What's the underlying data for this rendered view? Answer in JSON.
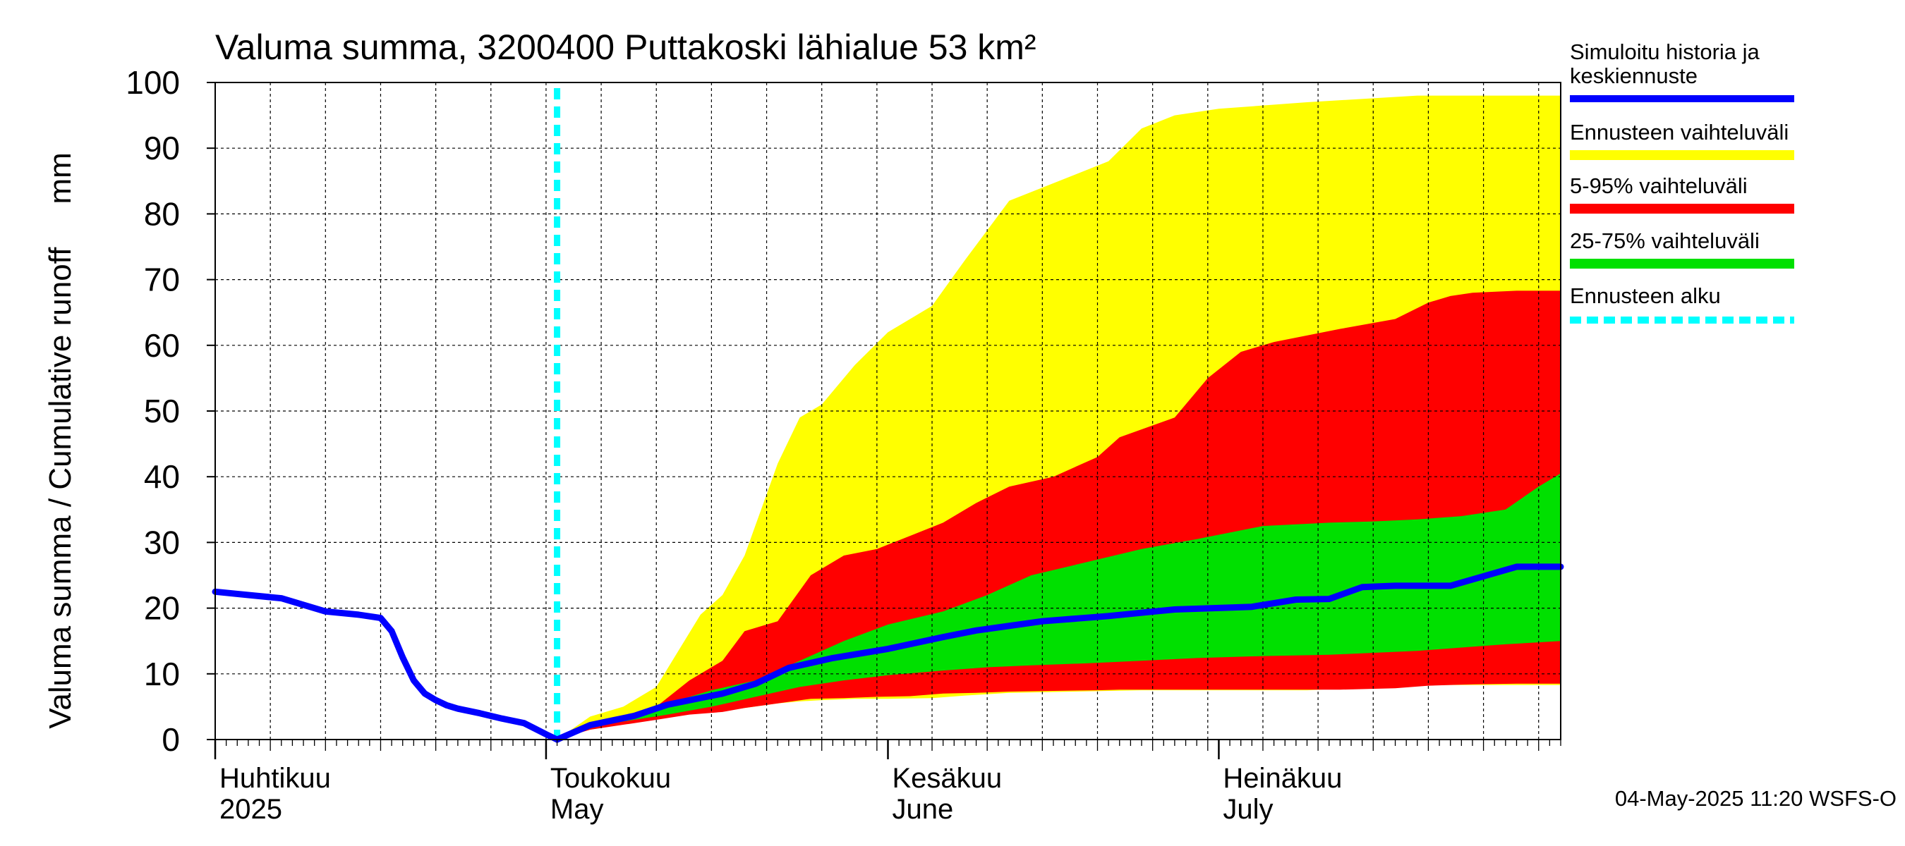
{
  "chart_data": {
    "type": "area",
    "title": "Valuma summa, 3200400 Puttakoski lähialue 53 km²",
    "ylabel": "Valuma summa / Cumulative runoff     mm",
    "ylim": [
      0,
      100
    ],
    "y_ticks": [
      0,
      10,
      20,
      30,
      40,
      50,
      60,
      70,
      80,
      90,
      100
    ],
    "grid": true,
    "x_unit": "day of year 2025",
    "xlim": [
      91,
      213
    ],
    "month_labels": [
      {
        "fi": "Huhtikuu",
        "en": "2025",
        "day": 91
      },
      {
        "fi": "Toukokuu",
        "en": "May",
        "day": 121
      },
      {
        "fi": "Kesäkuu",
        "en": "June",
        "day": 152
      },
      {
        "fi": "Heinäkuu",
        "en": "July",
        "day": 182
      }
    ],
    "forecast_start_day": 122,
    "history": {
      "name": "Simuloitu historia ja keskiennuste",
      "x": [
        91,
        94,
        97,
        99,
        101,
        104,
        106,
        107,
        108,
        109,
        110,
        111,
        112,
        113,
        115,
        117,
        119,
        121,
        122
      ],
      "y": [
        22.5,
        22,
        21.5,
        20.5,
        19.5,
        19,
        18.5,
        16.5,
        12.5,
        9,
        7,
        6,
        5.2,
        4.7,
        4,
        3.2,
        2.5,
        0.8,
        0
      ]
    },
    "median": {
      "x": [
        122,
        125,
        129,
        132,
        137,
        140,
        143,
        147,
        152,
        157,
        160,
        166,
        172,
        178,
        185,
        189,
        192,
        195,
        198,
        203,
        209,
        213
      ],
      "y": [
        0,
        2.2,
        3.6,
        5.3,
        7,
        8.5,
        10.9,
        12.4,
        13.8,
        15.6,
        16.6,
        18,
        18.8,
        19.8,
        20.2,
        21.3,
        21.4,
        23.2,
        23.4,
        23.4,
        26.3,
        26.3
      ]
    },
    "bands": [
      {
        "name": "Ennusteen vaihteluväli",
        "x": [
          122,
          125,
          128,
          131,
          135,
          137,
          139,
          142,
          144,
          146,
          149,
          152,
          156,
          159,
          163,
          166,
          169,
          172,
          175,
          178,
          182,
          190,
          200,
          213
        ],
        "lower": [
          0,
          1.5,
          2.5,
          3.3,
          4,
          4.3,
          4.8,
          5.5,
          5.8,
          6,
          6.2,
          6.2,
          6.3,
          6.7,
          7.1,
          7.2,
          7.3,
          7.4,
          7.5,
          7.5,
          7.5,
          7.5,
          8.3,
          8.3
        ],
        "upper": [
          0,
          3.5,
          5,
          8,
          19,
          22,
          28,
          42,
          49,
          51,
          57,
          62,
          66,
          73,
          82,
          84,
          86,
          88,
          93,
          95,
          96,
          97,
          98,
          98
        ]
      },
      {
        "name": "5-95% vaihteluväli",
        "x": [
          122,
          125,
          129,
          131,
          134,
          137,
          139,
          142,
          145,
          148,
          151,
          154,
          157,
          160,
          163,
          167,
          171,
          173,
          178,
          181,
          184,
          187,
          193,
          198,
          201,
          203,
          205,
          209,
          213
        ],
        "lower": [
          0,
          1.5,
          2.5,
          3,
          3.8,
          4.2,
          4.8,
          5.5,
          6.2,
          6.3,
          6.5,
          6.6,
          7,
          7.1,
          7.3,
          7.4,
          7.5,
          7.6,
          7.6,
          7.6,
          7.6,
          7.6,
          7.6,
          7.8,
          8.2,
          8.3,
          8.4,
          8.5,
          8.5
        ],
        "upper": [
          0,
          2.4,
          4,
          5,
          9,
          12,
          16.5,
          18,
          25,
          28,
          29,
          31,
          33,
          36,
          38.5,
          40,
          43,
          46,
          49,
          55,
          59,
          60.5,
          62.5,
          64,
          66.5,
          67.5,
          68,
          68.3,
          68.3
        ]
      },
      {
        "name": "25-75% vaihteluväli",
        "x": [
          122,
          125,
          129,
          132,
          136,
          140,
          144,
          148,
          152,
          157,
          161,
          165,
          170,
          175,
          180,
          186,
          192,
          196,
          200,
          204,
          208,
          211,
          213
        ],
        "lower": [
          0,
          2,
          3,
          3.8,
          5,
          6.5,
          8,
          9,
          9.8,
          10.5,
          11,
          11.3,
          11.6,
          12,
          12.4,
          12.7,
          12.9,
          13.2,
          13.5,
          14,
          14.5,
          14.8,
          15
        ],
        "upper": [
          0,
          2.5,
          4,
          5.5,
          7.5,
          9,
          12,
          15,
          17.5,
          19.5,
          22,
          25,
          27,
          29,
          30.5,
          32.5,
          33,
          33.2,
          33.5,
          34,
          35,
          38.5,
          40.5
        ]
      }
    ],
    "legend": [
      {
        "label": "Simuloitu historia ja keskiennuste",
        "color": "#0000ff",
        "style": "line"
      },
      {
        "label": "Ennusteen vaihteluväli",
        "color": "#ffff00",
        "style": "band"
      },
      {
        "label": "5-95% vaihteluväli",
        "color": "#ff0000",
        "style": "band"
      },
      {
        "label": "25-75% vaihteluväli",
        "color": "#00e000",
        "style": "band"
      },
      {
        "label": "Ennusteen alku",
        "color": "#00ffff",
        "style": "dashed"
      }
    ],
    "legend_placement": "right",
    "timestamp": "04-May-2025 11:20 WSFS-O"
  }
}
